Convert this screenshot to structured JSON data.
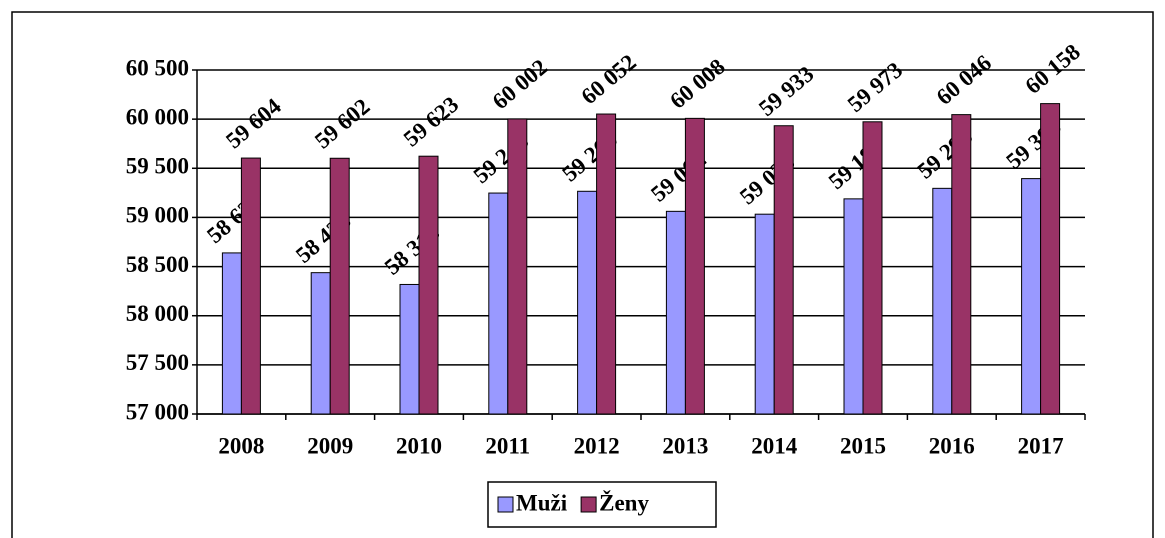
{
  "chart_data": {
    "type": "bar",
    "categories": [
      "2008",
      "2009",
      "2010",
      "2011",
      "2012",
      "2013",
      "2014",
      "2015",
      "2016",
      "2017"
    ],
    "series": [
      {
        "name": "Muži",
        "color": "#9999ff",
        "values": [
          58639,
          58438,
          58318,
          59248,
          59266,
          59062,
          59033,
          59189,
          59296,
          59395
        ],
        "value_labels": [
          "58 639",
          "58 438",
          "58 318",
          "59 248",
          "59 266",
          "59 062",
          "59 033",
          "59 189",
          "59 296",
          "59 395"
        ]
      },
      {
        "name": "Ženy",
        "color": "#993366",
        "values": [
          59604,
          59602,
          59623,
          60002,
          60052,
          60008,
          59933,
          59973,
          60046,
          60158
        ],
        "value_labels": [
          "59 604",
          "59 602",
          "59 623",
          "60 002",
          "60 052",
          "60 008",
          "59 933",
          "59 973",
          "60 046",
          "60 158"
        ]
      }
    ],
    "ylim": [
      57000,
      60500
    ],
    "yticks": [
      {
        "value": 57000,
        "label": "57 000"
      },
      {
        "value": 57500,
        "label": "57 500"
      },
      {
        "value": 58000,
        "label": "58 000"
      },
      {
        "value": 58500,
        "label": "58 500"
      },
      {
        "value": 59000,
        "label": "59 000"
      },
      {
        "value": 59500,
        "label": "59 500"
      },
      {
        "value": 60000,
        "label": "60 000"
      },
      {
        "value": 60500,
        "label": "60 500"
      }
    ],
    "grid": true,
    "legend": "bottom"
  }
}
